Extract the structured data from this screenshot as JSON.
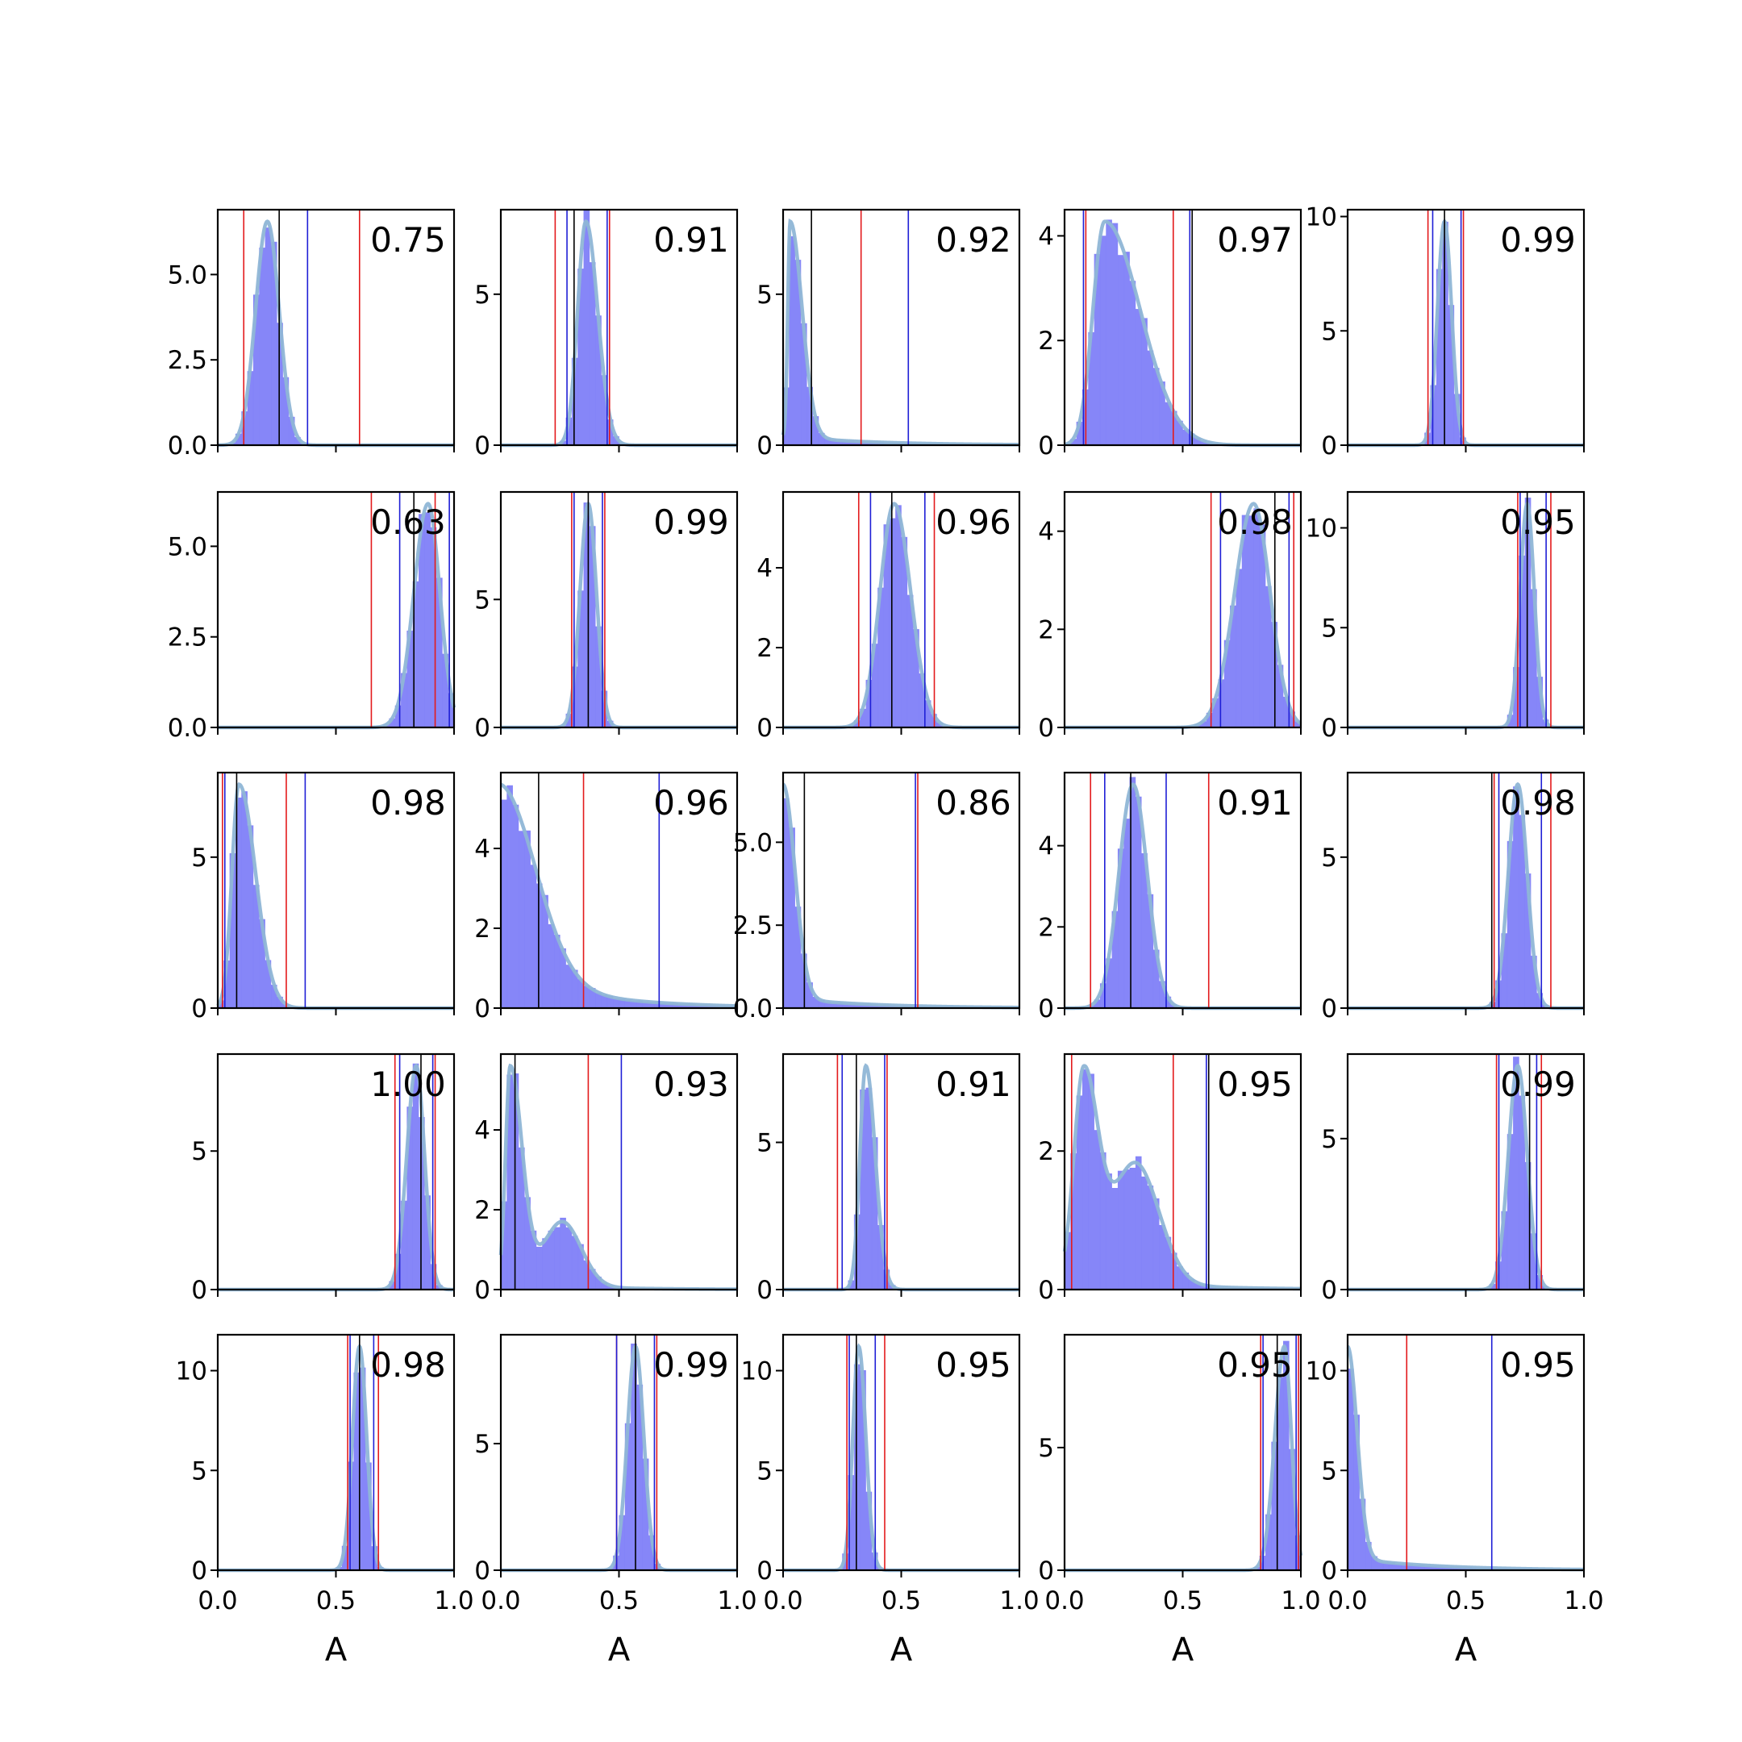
{
  "figure": {
    "xlabel": "A",
    "x_tick_labels": [
      "0.0",
      "0.5",
      "1.0"
    ]
  },
  "colors": {
    "hist": "#7f7ff8",
    "kde": "#8fb6d6",
    "red_line": "#e31a1c",
    "blue_line": "#1f1fd6",
    "black_line": "#000000"
  },
  "chart_data": [
    {
      "type": "histogram",
      "label": "0.75",
      "xlim": [
        0,
        1
      ],
      "ylim": [
        0,
        6.9
      ],
      "yticks": [
        0,
        2.5,
        5
      ],
      "ytick_labels": [
        "0.0",
        "2.5",
        "5.0"
      ],
      "dist": {
        "mu": 0.21,
        "sl": 0.05,
        "sr": 0.05
      },
      "red_lines": [
        0.11,
        0.6
      ],
      "blue_lines": [
        0.38
      ],
      "black_lines": [
        0.26
      ]
    },
    {
      "type": "histogram",
      "label": "0.91",
      "xlim": [
        0,
        1
      ],
      "ylim": [
        0,
        7.8
      ],
      "yticks": [
        0,
        5
      ],
      "ytick_labels": [
        "0",
        "5"
      ],
      "dist": {
        "mu": 0.36,
        "sl": 0.035,
        "sr": 0.05
      },
      "red_lines": [
        0.23,
        0.46
      ],
      "blue_lines": [
        0.28,
        0.45
      ],
      "black_lines": [
        0.31
      ]
    },
    {
      "type": "histogram",
      "label": "0.92",
      "xlim": [
        0,
        1
      ],
      "ylim": [
        0,
        7.8
      ],
      "yticks": [
        0,
        5
      ],
      "ytick_labels": [
        "0",
        "5"
      ],
      "dist": {
        "mu": 0.03,
        "sl": 0.01,
        "sr": 0.05,
        "tail": 0.04
      },
      "red_lines": [
        0.33
      ],
      "blue_lines": [
        0.53
      ],
      "black_lines": [
        0.12
      ]
    },
    {
      "type": "histogram",
      "label": "0.97",
      "xlim": [
        0,
        1
      ],
      "ylim": [
        0,
        4.5
      ],
      "yticks": [
        0,
        2,
        4
      ],
      "ytick_labels": [
        "0",
        "2",
        "4"
      ],
      "dist": {
        "mu": 0.17,
        "sl": 0.05,
        "sr": 0.15
      },
      "red_lines": [
        0.09,
        0.46
      ],
      "blue_lines": [
        0.08,
        0.53
      ],
      "black_lines": [
        0.54
      ]
    },
    {
      "type": "histogram",
      "label": "0.99",
      "xlim": [
        0,
        1
      ],
      "ylim": [
        0,
        10.3
      ],
      "yticks": [
        0,
        5,
        10
      ],
      "ytick_labels": [
        "0",
        "5",
        "10"
      ],
      "dist": {
        "mu": 0.41,
        "sl": 0.03,
        "sr": 0.03
      },
      "red_lines": [
        0.34,
        0.49
      ],
      "blue_lines": [
        0.36,
        0.48
      ],
      "black_lines": [
        0.41
      ]
    },
    {
      "type": "histogram",
      "label": "0.63",
      "xlim": [
        0,
        1
      ],
      "ylim": [
        0,
        6.5
      ],
      "yticks": [
        0,
        2.5,
        5
      ],
      "ytick_labels": [
        "0.0",
        "2.5",
        "5.0"
      ],
      "dist": {
        "mu": 0.89,
        "sl": 0.06,
        "sr": 0.05
      },
      "red_lines": [
        0.65,
        0.92
      ],
      "blue_lines": [
        0.77,
        0.98
      ],
      "black_lines": [
        0.83
      ]
    },
    {
      "type": "histogram",
      "label": "0.99",
      "xlim": [
        0,
        1
      ],
      "ylim": [
        0,
        9.2
      ],
      "yticks": [
        0,
        5
      ],
      "ytick_labels": [
        "0",
        "5"
      ],
      "dist": {
        "mu": 0.37,
        "sl": 0.035,
        "sr": 0.035
      },
      "red_lines": [
        0.3,
        0.44
      ],
      "blue_lines": [
        0.31,
        0.43
      ],
      "black_lines": [
        0.37
      ]
    },
    {
      "type": "histogram",
      "label": "0.96",
      "xlim": [
        0,
        1
      ],
      "ylim": [
        0,
        5.9
      ],
      "yticks": [
        0,
        2,
        4
      ],
      "ytick_labels": [
        "0",
        "2",
        "4"
      ],
      "dist": {
        "mu": 0.47,
        "sl": 0.06,
        "sr": 0.07
      },
      "red_lines": [
        0.32,
        0.64
      ],
      "blue_lines": [
        0.37,
        0.6
      ],
      "black_lines": [
        0.46
      ]
    },
    {
      "type": "histogram",
      "label": "0.98",
      "xlim": [
        0,
        1
      ],
      "ylim": [
        0,
        4.8
      ],
      "yticks": [
        0,
        2,
        4
      ],
      "ytick_labels": [
        "0",
        "2",
        "4"
      ],
      "dist": {
        "mu": 0.8,
        "sl": 0.08,
        "sr": 0.07
      },
      "red_lines": [
        0.62,
        0.97
      ],
      "blue_lines": [
        0.66,
        0.95
      ],
      "black_lines": [
        0.89
      ]
    },
    {
      "type": "histogram",
      "label": "0.95",
      "xlim": [
        0,
        1
      ],
      "ylim": [
        0,
        11.8
      ],
      "yticks": [
        0,
        5,
        10
      ],
      "ytick_labels": [
        "0",
        "5",
        "10"
      ],
      "dist": {
        "mu": 0.76,
        "sl": 0.03,
        "sr": 0.03
      },
      "red_lines": [
        0.72,
        0.86
      ],
      "blue_lines": [
        0.73,
        0.84
      ],
      "black_lines": [
        0.76
      ]
    },
    {
      "type": "histogram",
      "label": "0.98",
      "xlim": [
        0,
        1
      ],
      "ylim": [
        0,
        7.8
      ],
      "yticks": [
        0,
        5
      ],
      "ytick_labels": [
        "0",
        "5"
      ],
      "dist": {
        "mu": 0.09,
        "sl": 0.03,
        "sr": 0.07
      },
      "red_lines": [
        0.02,
        0.29
      ],
      "blue_lines": [
        0.03,
        0.37
      ],
      "black_lines": [
        0.08
      ]
    },
    {
      "type": "histogram",
      "label": "0.96",
      "xlim": [
        0,
        1
      ],
      "ylim": [
        0,
        5.9
      ],
      "yticks": [
        0,
        2,
        4
      ],
      "ytick_labels": [
        "0",
        "2",
        "4"
      ],
      "dist": {
        "mu": 0.0,
        "sl": 0.01,
        "sr": 0.15,
        "tail": 0.2
      },
      "red_lines": [
        0.35
      ],
      "blue_lines": [
        0.67
      ],
      "black_lines": [
        0.16
      ]
    },
    {
      "type": "histogram",
      "label": "0.86",
      "xlim": [
        0,
        1
      ],
      "ylim": [
        0,
        7.1
      ],
      "yticks": [
        0,
        2.5,
        5
      ],
      "ytick_labels": [
        "0.0",
        "2.5",
        "5.0"
      ],
      "dist": {
        "mu": 0.0,
        "sl": 0.01,
        "sr": 0.05,
        "tail": 0.05
      },
      "red_lines": [
        0.57
      ],
      "blue_lines": [
        0.56
      ],
      "black_lines": [
        0.09
      ]
    },
    {
      "type": "histogram",
      "label": "0.91",
      "xlim": [
        0,
        1
      ],
      "ylim": [
        0,
        5.8
      ],
      "yticks": [
        0,
        2,
        4
      ],
      "ytick_labels": [
        "0",
        "2",
        "4"
      ],
      "dist": {
        "mu": 0.29,
        "sl": 0.06,
        "sr": 0.06
      },
      "red_lines": [
        0.11,
        0.61
      ],
      "blue_lines": [
        0.17,
        0.43
      ],
      "black_lines": [
        0.28
      ]
    },
    {
      "type": "histogram",
      "label": "0.98",
      "xlim": [
        0,
        1
      ],
      "ylim": [
        0,
        7.8
      ],
      "yticks": [
        0,
        5
      ],
      "ytick_labels": [
        "0",
        "5"
      ],
      "dist": {
        "mu": 0.72,
        "sl": 0.04,
        "sr": 0.04
      },
      "red_lines": [
        0.62,
        0.86
      ],
      "blue_lines": [
        0.64,
        0.82
      ],
      "black_lines": [
        0.61
      ]
    },
    {
      "type": "histogram",
      "label": "1.00",
      "xlim": [
        0,
        1
      ],
      "ylim": [
        0,
        8.5
      ],
      "yticks": [
        0,
        5
      ],
      "ytick_labels": [
        "0",
        "5"
      ],
      "dist": {
        "mu": 0.84,
        "sl": 0.04,
        "sr": 0.035
      },
      "red_lines": [
        0.75,
        0.92
      ],
      "blue_lines": [
        0.77,
        0.91
      ],
      "black_lines": [
        0.86
      ]
    },
    {
      "type": "histogram",
      "label": "0.93",
      "xlim": [
        0,
        1
      ],
      "ylim": [
        0,
        5.9
      ],
      "yticks": [
        0,
        2,
        4
      ],
      "ytick_labels": [
        "0",
        "2",
        "4"
      ],
      "dist": {
        "mu": 0.04,
        "sl": 0.02,
        "sr": 0.05,
        "mode2": 0.26,
        "w2": 0.08,
        "h2": 0.3,
        "tail": 0.025
      },
      "red_lines": [
        0.37
      ],
      "blue_lines": [
        0.51
      ],
      "black_lines": [
        0.06
      ]
    },
    {
      "type": "histogram",
      "label": "0.91",
      "xlim": [
        0,
        1
      ],
      "ylim": [
        0,
        8
      ],
      "yticks": [
        0,
        5
      ],
      "ytick_labels": [
        "0",
        "5"
      ],
      "dist": {
        "mu": 0.35,
        "sl": 0.025,
        "sr": 0.04
      },
      "red_lines": [
        0.23,
        0.44
      ],
      "blue_lines": [
        0.25,
        0.43
      ],
      "black_lines": [
        0.31
      ]
    },
    {
      "type": "histogram",
      "label": "0.95",
      "xlim": [
        0,
        1
      ],
      "ylim": [
        0,
        3.4
      ],
      "yticks": [
        0,
        2
      ],
      "ytick_labels": [
        "0",
        "2"
      ],
      "dist": {
        "mu": 0.08,
        "sl": 0.04,
        "sr": 0.06,
        "mode2": 0.3,
        "w2": 0.1,
        "h2": 0.6,
        "tail": 0.06
      },
      "red_lines": [
        0.03,
        0.46
      ],
      "blue_lines": [
        0.6
      ],
      "black_lines": [
        0.61
      ]
    },
    {
      "type": "histogram",
      "label": "0.99",
      "xlim": [
        0,
        1
      ],
      "ylim": [
        0,
        7.8
      ],
      "yticks": [
        0,
        5
      ],
      "ytick_labels": [
        "0",
        "5"
      ],
      "dist": {
        "mu": 0.72,
        "sl": 0.04,
        "sr": 0.04
      },
      "red_lines": [
        0.63,
        0.82
      ],
      "blue_lines": [
        0.64,
        0.8
      ],
      "black_lines": [
        0.77
      ]
    },
    {
      "type": "histogram",
      "label": "0.98",
      "xlim": [
        0,
        1
      ],
      "ylim": [
        0,
        11.8
      ],
      "yticks": [
        0,
        5,
        10
      ],
      "ytick_labels": [
        "0",
        "5",
        "10"
      ],
      "dist": {
        "mu": 0.6,
        "sl": 0.03,
        "sr": 0.03
      },
      "red_lines": [
        0.55,
        0.68
      ],
      "blue_lines": [
        0.56,
        0.66
      ],
      "black_lines": [
        0.6
      ]
    },
    {
      "type": "histogram",
      "label": "0.99",
      "xlim": [
        0,
        1
      ],
      "ylim": [
        0,
        9.3
      ],
      "yticks": [
        0,
        5
      ],
      "ytick_labels": [
        "0",
        "5"
      ],
      "dist": {
        "mu": 0.57,
        "sl": 0.035,
        "sr": 0.035
      },
      "red_lines": [
        0.49,
        0.66
      ],
      "blue_lines": [
        0.49,
        0.65
      ],
      "black_lines": [
        0.57
      ]
    },
    {
      "type": "histogram",
      "label": "0.95",
      "xlim": [
        0,
        1
      ],
      "ylim": [
        0,
        11.8
      ],
      "yticks": [
        0,
        5,
        10
      ],
      "ytick_labels": [
        "0",
        "5",
        "10"
      ],
      "dist": {
        "mu": 0.32,
        "sl": 0.025,
        "sr": 0.03
      },
      "red_lines": [
        0.27,
        0.43
      ],
      "blue_lines": [
        0.28,
        0.39
      ],
      "black_lines": [
        0.31
      ]
    },
    {
      "type": "histogram",
      "label": "0.95",
      "xlim": [
        0,
        1
      ],
      "ylim": [
        0,
        9.6
      ],
      "yticks": [
        0,
        5
      ],
      "ytick_labels": [
        "0",
        "5"
      ],
      "dist": {
        "mu": 0.93,
        "sl": 0.04,
        "sr": 0.03
      },
      "red_lines": [
        0.83,
        0.99
      ],
      "blue_lines": [
        0.84,
        0.98
      ],
      "black_lines": [
        0.9
      ]
    },
    {
      "type": "histogram",
      "label": "0.95",
      "xlim": [
        0,
        1
      ],
      "ylim": [
        0,
        11.8
      ],
      "yticks": [
        0,
        5,
        10
      ],
      "ytick_labels": [
        "0",
        "5",
        "10"
      ],
      "dist": {
        "mu": 0.0,
        "sl": 0.01,
        "sr": 0.04,
        "tail": 0.06
      },
      "red_lines": [
        0.25
      ],
      "blue_lines": [
        0.61
      ],
      "black_lines": []
    }
  ]
}
